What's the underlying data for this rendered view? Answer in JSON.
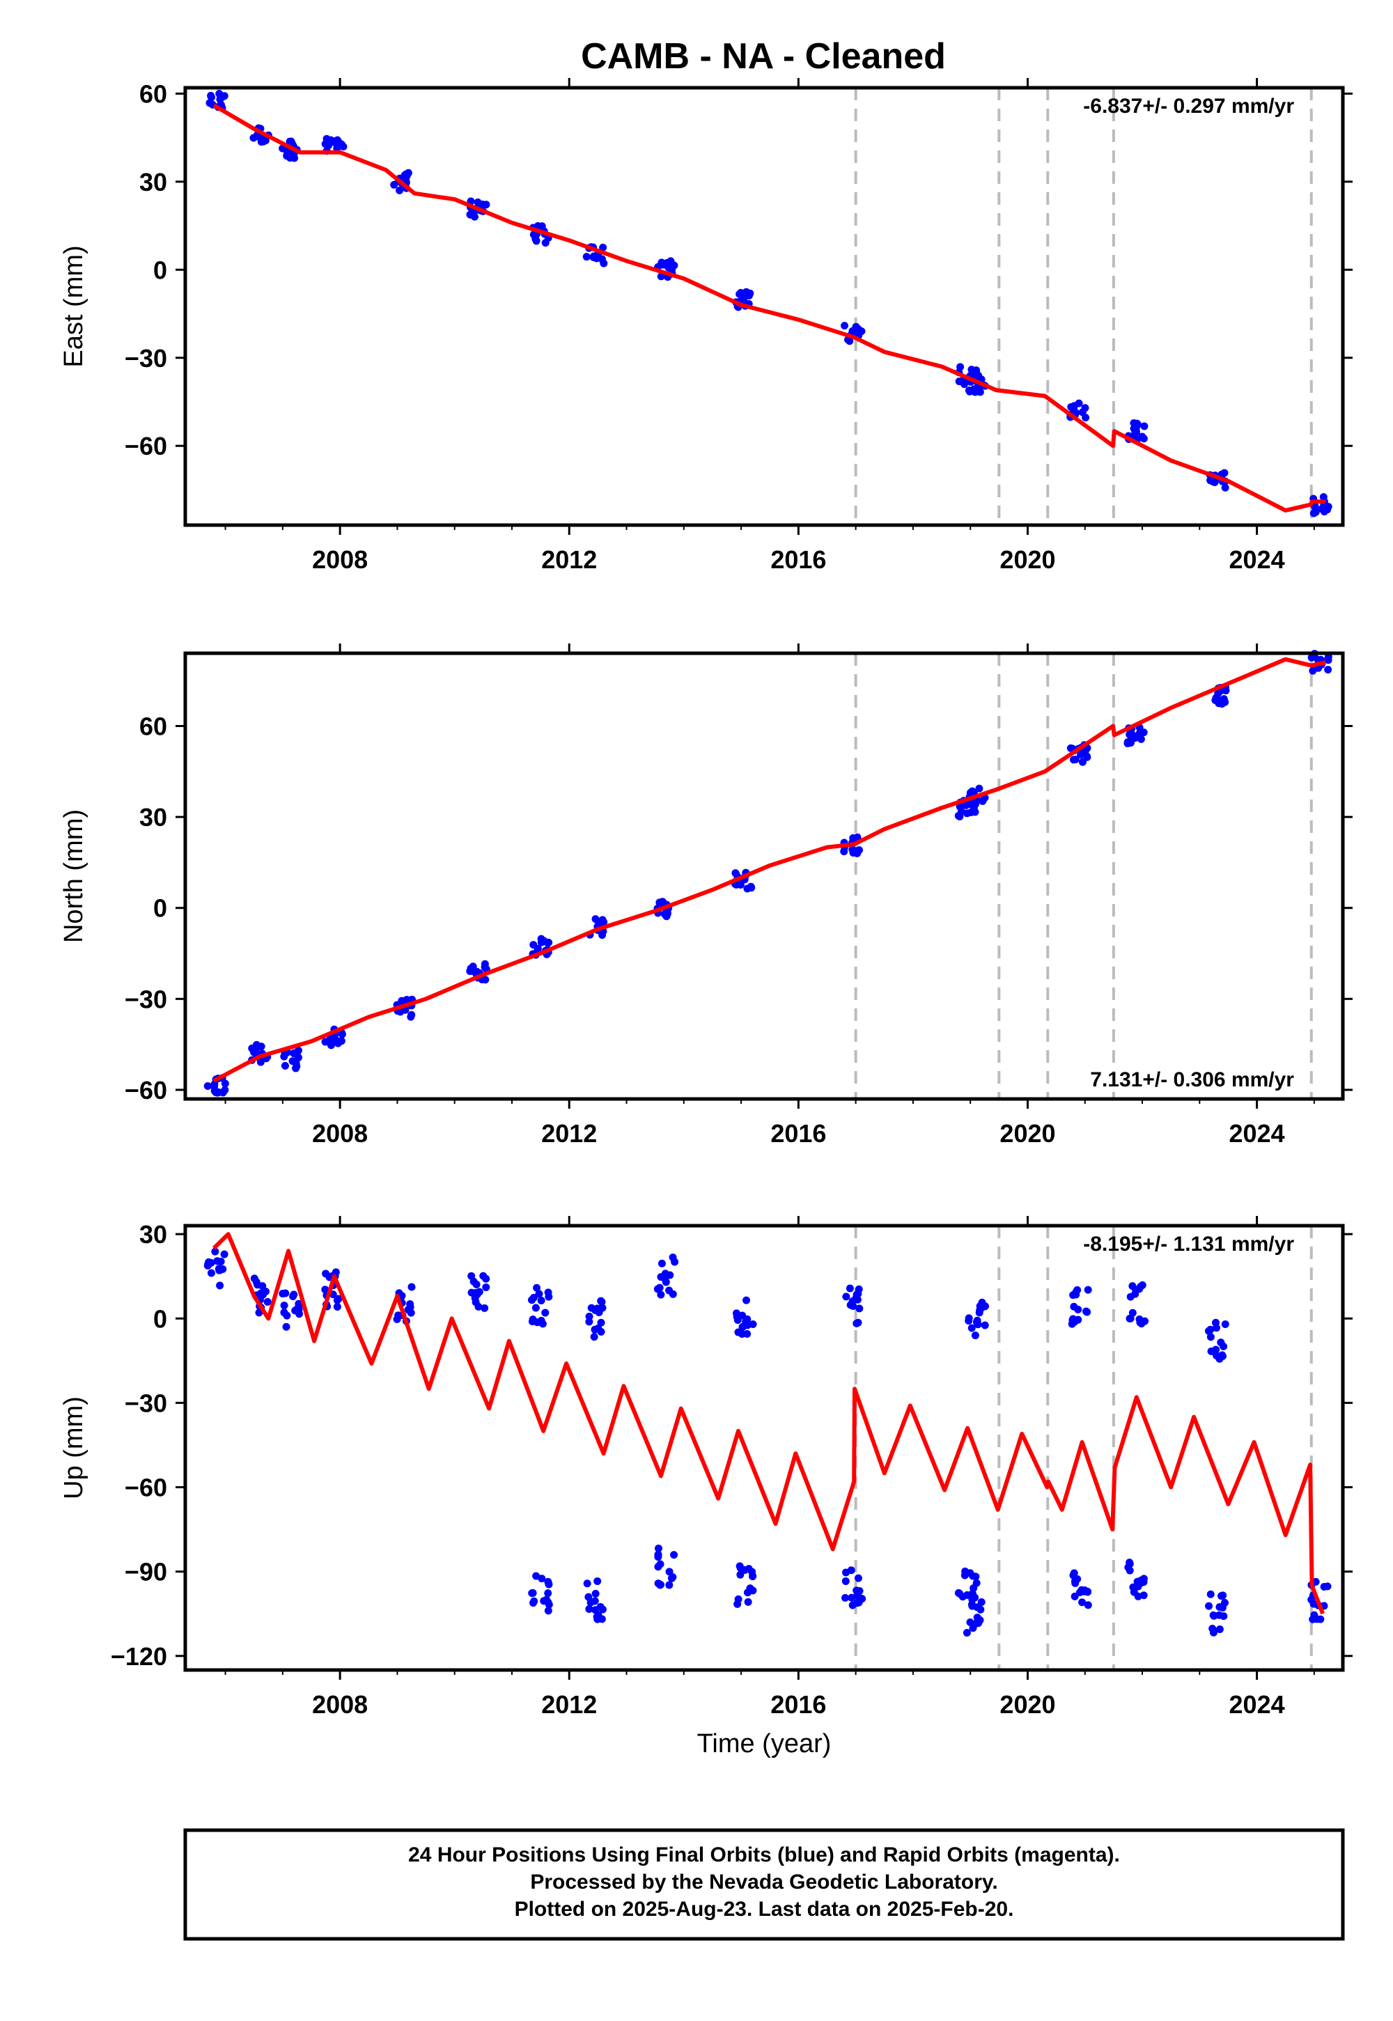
{
  "title": "CAMB  - NA - Cleaned",
  "footer": {
    "line1": "24 Hour Positions Using Final Orbits (blue) and Rapid Orbits (magenta).",
    "line2": "Processed by the Nevada Geodetic Laboratory.",
    "line3": "Plotted on 2025-Aug-23. Last data on 2025-Feb-20."
  },
  "colors": {
    "data": "#0000ff",
    "model": "#ff0000",
    "events": "#bbbbbb",
    "axes": "#000000"
  },
  "chart_data": [
    {
      "type": "scatter",
      "panel": "east",
      "ylabel": "East (mm)",
      "xlabel": "",
      "rate": "-6.837+/- 0.297 mm/yr",
      "rate_position": "top-right",
      "xlim": [
        2005.3,
        2025.5
      ],
      "ylim": [
        -87,
        62
      ],
      "xticks": [
        2008,
        2012,
        2016,
        2020,
        2024
      ],
      "yticks": [
        60,
        30,
        0,
        -30,
        -60
      ],
      "xtick_labels": [
        "2008",
        "2012",
        "2016",
        "2020",
        "2024"
      ],
      "ytick_labels": [
        "60",
        "30",
        "0",
        "−30",
        "−60"
      ],
      "event_lines": [
        2017.0,
        2019.5,
        2020.35,
        2021.5,
        2024.95
      ],
      "series": [
        {
          "kind": "observations",
          "points": [
            [
              2005.85,
              57
            ],
            [
              2006.6,
              46
            ],
            [
              2007.15,
              41
            ],
            [
              2007.9,
              42
            ],
            [
              2009.1,
              30
            ],
            [
              2010.4,
              21
            ],
            [
              2011.5,
              12
            ],
            [
              2012.45,
              5
            ],
            [
              2013.7,
              0
            ],
            [
              2015.05,
              -10
            ],
            [
              2016.95,
              -22
            ],
            [
              2018.95,
              -36
            ],
            [
              2019.1,
              -39
            ],
            [
              2020.9,
              -48
            ],
            [
              2021.9,
              -55
            ],
            [
              2023.3,
              -72
            ],
            [
              2025.1,
              -80
            ]
          ]
        },
        {
          "kind": "model",
          "points": [
            [
              2005.8,
              56
            ],
            [
              2006.5,
              48
            ],
            [
              2007.3,
              40
            ],
            [
              2008,
              40
            ],
            [
              2008.8,
              34
            ],
            [
              2009.3,
              26
            ],
            [
              2010,
              24
            ],
            [
              2011,
              16
            ],
            [
              2012,
              10
            ],
            [
              2013,
              3
            ],
            [
              2014,
              -3
            ],
            [
              2015,
              -12
            ],
            [
              2016,
              -17
            ],
            [
              2016.97,
              -23
            ],
            [
              2017.5,
              -28
            ],
            [
              2018.5,
              -33
            ],
            [
              2019.45,
              -41
            ],
            [
              2020.3,
              -43
            ],
            [
              2021.49,
              -60
            ],
            [
              2021.51,
              -55
            ],
            [
              2022.5,
              -65
            ],
            [
              2023.5,
              -72
            ],
            [
              2024.5,
              -82
            ],
            [
              2024.94,
              -80
            ],
            [
              2024.96,
              -79
            ],
            [
              2025.2,
              -79
            ]
          ]
        }
      ]
    },
    {
      "type": "scatter",
      "panel": "north",
      "ylabel": "North (mm)",
      "xlabel": "",
      "rate": "7.131+/- 0.306 mm/yr",
      "rate_position": "bottom-right",
      "xlim": [
        2005.3,
        2025.5
      ],
      "ylim": [
        -63,
        84
      ],
      "xticks": [
        2008,
        2012,
        2016,
        2020,
        2024
      ],
      "yticks": [
        60,
        30,
        0,
        -30,
        -60
      ],
      "xtick_labels": [
        "2008",
        "2012",
        "2016",
        "2020",
        "2024"
      ],
      "ytick_labels": [
        "60",
        "30",
        "0",
        "−30",
        "−60"
      ],
      "event_lines": [
        2017.0,
        2019.5,
        2020.35,
        2021.5,
        2024.95
      ],
      "series": [
        {
          "kind": "observations",
          "points": [
            [
              2005.85,
              -58
            ],
            [
              2006.6,
              -48
            ],
            [
              2007.15,
              -50
            ],
            [
              2007.9,
              -43
            ],
            [
              2009.1,
              -33
            ],
            [
              2010.4,
              -21
            ],
            [
              2011.5,
              -13
            ],
            [
              2012.45,
              -6
            ],
            [
              2013.7,
              0
            ],
            [
              2015.05,
              9
            ],
            [
              2016.95,
              21
            ],
            [
              2018.95,
              33
            ],
            [
              2019.1,
              37
            ],
            [
              2020.9,
              51
            ],
            [
              2021.9,
              57
            ],
            [
              2023.3,
              70
            ],
            [
              2025.1,
              81
            ]
          ]
        },
        {
          "kind": "model",
          "points": [
            [
              2005.8,
              -57
            ],
            [
              2006.6,
              -49
            ],
            [
              2007.5,
              -44
            ],
            [
              2008.5,
              -36
            ],
            [
              2009.5,
              -30
            ],
            [
              2010.5,
              -22
            ],
            [
              2011.5,
              -15
            ],
            [
              2012.5,
              -7
            ],
            [
              2013.5,
              -1
            ],
            [
              2014.5,
              6
            ],
            [
              2015.5,
              14
            ],
            [
              2016.5,
              20
            ],
            [
              2016.97,
              21
            ],
            [
              2017.5,
              26
            ],
            [
              2018.5,
              33
            ],
            [
              2019.45,
              39
            ],
            [
              2020.3,
              45
            ],
            [
              2021.49,
              60
            ],
            [
              2021.51,
              57
            ],
            [
              2022.5,
              66
            ],
            [
              2023.5,
              74
            ],
            [
              2024.5,
              82
            ],
            [
              2024.94,
              80
            ],
            [
              2024.96,
              80
            ],
            [
              2025.2,
              81
            ]
          ]
        }
      ]
    },
    {
      "type": "scatter",
      "panel": "up",
      "ylabel": "Up (mm)",
      "xlabel": "Time (year)",
      "rate": "-8.195+/- 1.131 mm/yr",
      "rate_position": "top-right",
      "xlim": [
        2005.3,
        2025.5
      ],
      "ylim": [
        -125,
        33
      ],
      "xticks": [
        2008,
        2012,
        2016,
        2020,
        2024
      ],
      "yticks": [
        30,
        0,
        -30,
        -60,
        -90,
        -120
      ],
      "xtick_labels": [
        "2008",
        "2012",
        "2016",
        "2020",
        "2024"
      ],
      "ytick_labels": [
        "30",
        "0",
        "−30",
        "−60",
        "−90",
        "−120"
      ],
      "event_lines": [
        2017.0,
        2019.5,
        2020.35,
        2021.5,
        2024.95
      ],
      "series": [
        {
          "kind": "observations",
          "points": [
            [
              2005.85,
              18
            ],
            [
              2006.6,
              8
            ],
            [
              2007.15,
              4
            ],
            [
              2007.9,
              10
            ],
            [
              2009.1,
              5
            ],
            [
              2010.4,
              10
            ],
            [
              2011.5,
              -98
            ],
            [
              2011.5,
              5
            ],
            [
              2012.45,
              -100
            ],
            [
              2012.45,
              0
            ],
            [
              2013.7,
              -88
            ],
            [
              2013.7,
              15
            ],
            [
              2015.05,
              -95
            ],
            [
              2015.05,
              0
            ],
            [
              2016.95,
              -95
            ],
            [
              2016.95,
              5
            ],
            [
              2018.95,
              -95
            ],
            [
              2019.1,
              0
            ],
            [
              2019.1,
              -105
            ],
            [
              2020.9,
              -95
            ],
            [
              2020.9,
              5
            ],
            [
              2021.9,
              -92
            ],
            [
              2021.9,
              5
            ],
            [
              2023.3,
              -105
            ],
            [
              2023.3,
              -8
            ],
            [
              2025.1,
              -100
            ]
          ]
        },
        {
          "kind": "model",
          "points": [
            [
              2005.8,
              25
            ],
            [
              2006.05,
              30
            ],
            [
              2006.5,
              8
            ],
            [
              2006.75,
              0
            ],
            [
              2007.1,
              24
            ],
            [
              2007.55,
              -8
            ],
            [
              2007.9,
              15
            ],
            [
              2008.55,
              -16
            ],
            [
              2009.0,
              8
            ],
            [
              2009.55,
              -25
            ],
            [
              2009.95,
              0
            ],
            [
              2010.6,
              -32
            ],
            [
              2010.95,
              -8
            ],
            [
              2011.55,
              -40
            ],
            [
              2011.95,
              -16
            ],
            [
              2012.6,
              -48
            ],
            [
              2012.95,
              -24
            ],
            [
              2013.6,
              -56
            ],
            [
              2013.95,
              -32
            ],
            [
              2014.6,
              -64
            ],
            [
              2014.95,
              -40
            ],
            [
              2015.6,
              -73
            ],
            [
              2015.95,
              -48
            ],
            [
              2016.6,
              -82
            ],
            [
              2016.97,
              -58
            ],
            [
              2016.98,
              -25
            ],
            [
              2017.5,
              -55
            ],
            [
              2017.95,
              -31
            ],
            [
              2018.55,
              -61
            ],
            [
              2018.95,
              -39
            ],
            [
              2019.48,
              -68
            ],
            [
              2019.9,
              -41
            ],
            [
              2020.34,
              -60
            ],
            [
              2020.36,
              -58
            ],
            [
              2020.6,
              -68
            ],
            [
              2020.95,
              -44
            ],
            [
              2021.48,
              -75
            ],
            [
              2021.52,
              -53
            ],
            [
              2021.9,
              -28
            ],
            [
              2022.5,
              -60
            ],
            [
              2022.9,
              -35
            ],
            [
              2023.5,
              -66
            ],
            [
              2023.95,
              -44
            ],
            [
              2024.5,
              -77
            ],
            [
              2024.93,
              -52
            ],
            [
              2024.96,
              -95
            ],
            [
              2025.15,
              -105
            ]
          ]
        }
      ]
    }
  ]
}
